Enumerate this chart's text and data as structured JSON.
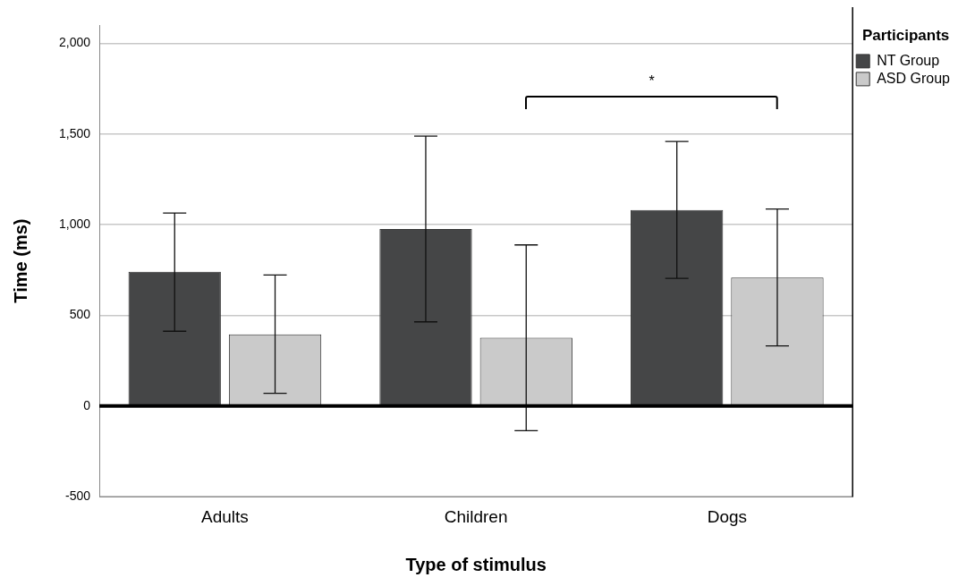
{
  "chart_data": {
    "type": "bar",
    "xlabel": "Type of stimulus",
    "ylabel": "Time (ms)",
    "legend_title": "Participants",
    "categories": [
      "Adults",
      "Children",
      "Dogs"
    ],
    "series": [
      {
        "name": "NT Group",
        "color": "#454647",
        "values": [
          740,
          975,
          1080
        ],
        "errors": [
          [
            412,
            1064
          ],
          [
            464,
            1488
          ],
          [
            704,
            1458
          ]
        ]
      },
      {
        "name": "ASD Group",
        "color": "#cacaca",
        "values": [
          395,
          376,
          708
        ],
        "errors": [
          [
            70,
            722
          ],
          [
            -136,
            888
          ],
          [
            331,
            1086
          ]
        ]
      }
    ],
    "ylim": [
      -500,
      2100
    ],
    "yticks": [
      -500,
      0,
      500,
      {
        "value": 1000,
        "label": "1,000"
      },
      {
        "value": 1500,
        "label": "1,500"
      },
      {
        "value": 2000,
        "label": "2,000"
      }
    ],
    "grid": "y",
    "legend": "top right",
    "ref_lines": [
      {
        "axis": "y",
        "value": 0,
        "color": "#000000"
      }
    ],
    "annotations": [
      "*"
    ]
  }
}
